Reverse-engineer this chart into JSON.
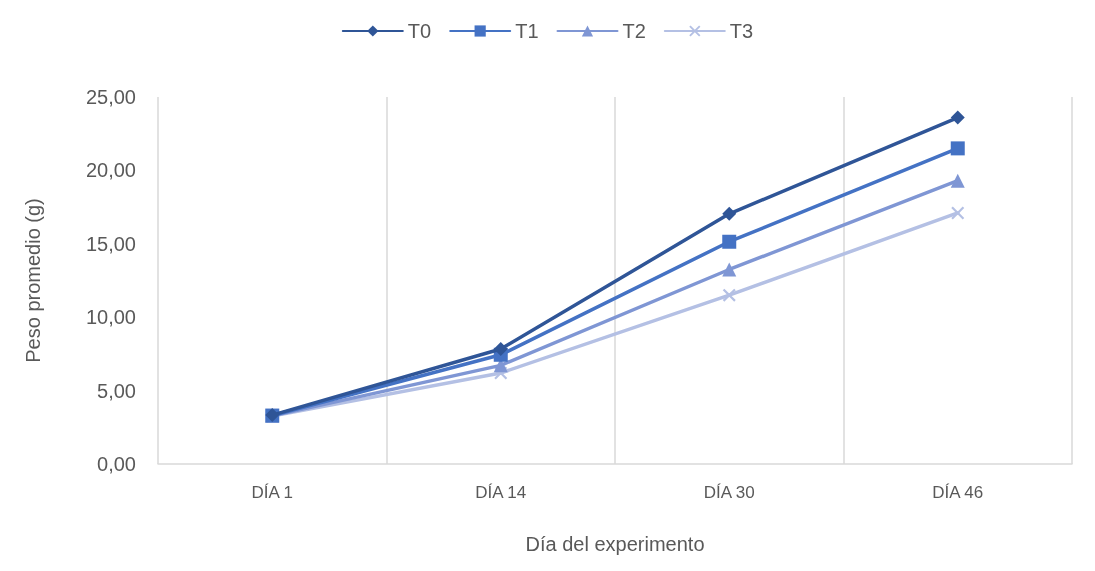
{
  "chart_data": {
    "type": "line",
    "xlabel": "Día del experimento",
    "ylabel": "Peso promedio (g)",
    "categories": [
      "DÍA 1",
      "DÍA 14",
      "DÍA 30",
      "DÍA 46"
    ],
    "series": [
      {
        "name": "T0",
        "color": "#2f5597",
        "marker": "diamond",
        "values": [
          3.33,
          7.83,
          17.04,
          23.6
        ]
      },
      {
        "name": "T1",
        "color": "#4472c4",
        "marker": "square",
        "values": [
          3.3,
          7.44,
          15.14,
          21.5
        ]
      },
      {
        "name": "T2",
        "color": "#7f96d4",
        "marker": "triangle",
        "values": [
          3.28,
          6.72,
          13.25,
          19.3
        ]
      },
      {
        "name": "T3",
        "color": "#b4c0e4",
        "marker": "cross",
        "values": [
          3.26,
          6.2,
          11.5,
          17.1
        ]
      }
    ],
    "ylim": [
      0,
      25
    ],
    "yticks": [
      {
        "value": 0,
        "label": "0,00"
      },
      {
        "value": 5,
        "label": "5,00"
      },
      {
        "value": 10,
        "label": "10,00"
      },
      {
        "value": 15,
        "label": "15,00"
      },
      {
        "value": 20,
        "label": "20,00"
      },
      {
        "value": 25,
        "label": "25,00"
      }
    ],
    "grid": "x",
    "legend": "top",
    "line_style": "solid"
  }
}
